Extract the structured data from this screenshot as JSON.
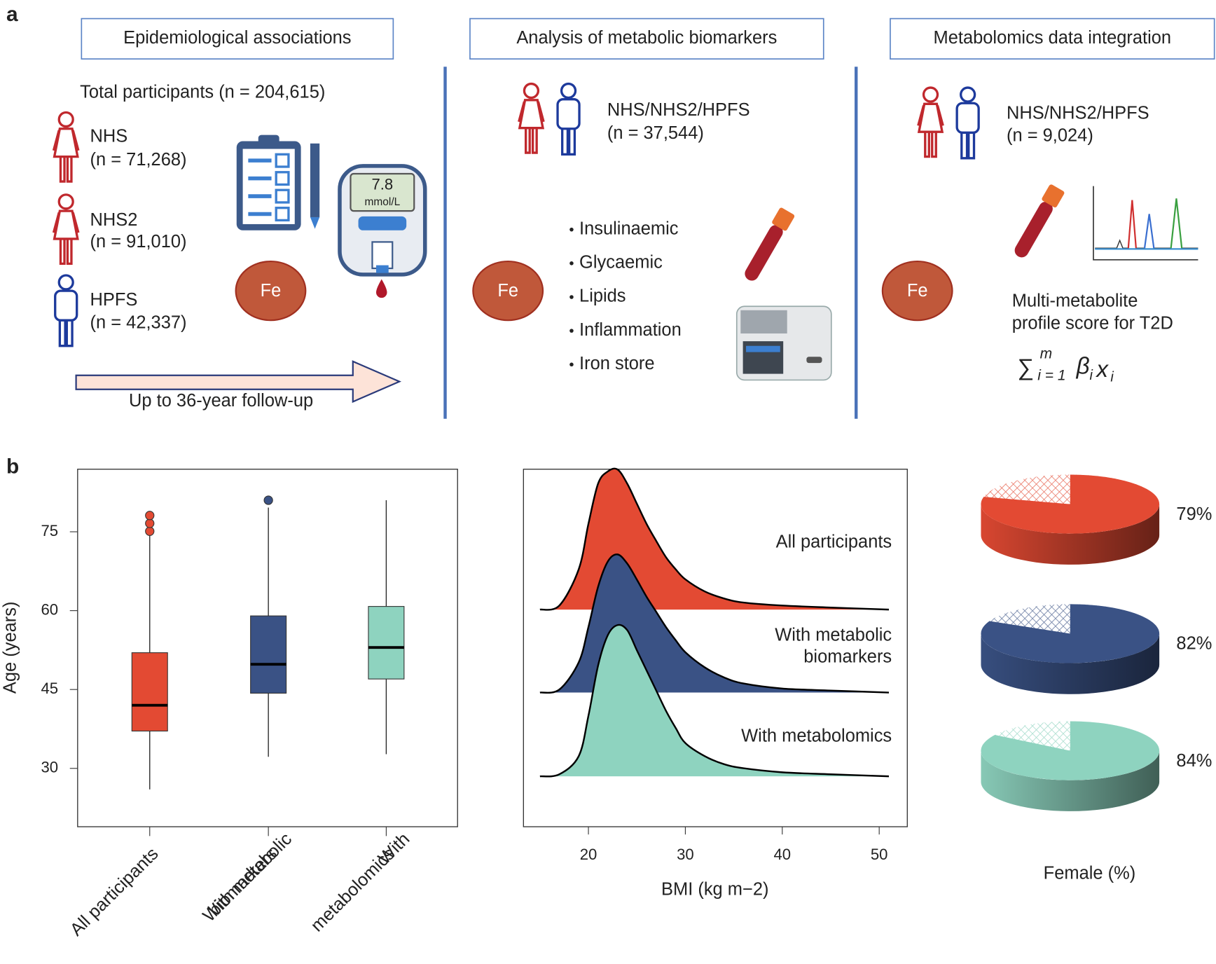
{
  "panel_a": {
    "label": "a",
    "columns": [
      {
        "header": "Epidemiological associations",
        "total": "Total participants (n = 204,615)",
        "cohorts": [
          {
            "name": "NHS",
            "n": "(n = 71,268)"
          },
          {
            "name": "NHS2",
            "n": "(n = 91,010)"
          },
          {
            "name": "HPFS",
            "n": "(n = 42,337)"
          }
        ],
        "meter": {
          "reading": "7.8",
          "unit": "mmol/L"
        },
        "fe": "Fe",
        "arrow": "Up to 36-year follow-up"
      },
      {
        "header": "Analysis of metabolic biomarkers",
        "cohort": "NHS/NHS2/HPFS",
        "n": "(n = 37,544)",
        "fe": "Fe",
        "biomarkers": [
          "Insulinaemic",
          "Glycaemic",
          "Lipids",
          "Inflammation",
          "Iron store"
        ]
      },
      {
        "header": "Metabolomics data integration",
        "cohort": "NHS/NHS2/HPFS",
        "n": "(n = 9,024)",
        "fe": "Fe",
        "score": [
          "Multi-metabolite",
          "profile score for T2D"
        ],
        "formula": {
          "sum": "∑",
          "upper": "m",
          "lower": "i = 1",
          "beta": "β",
          "sub1": "i",
          "x": "x",
          "sub2": "i"
        }
      }
    ]
  },
  "panel_b": {
    "label": "b"
  },
  "chart_data": [
    {
      "type": "box",
      "ylabel": "Age (years)",
      "ylim": [
        18.9,
        86.9
      ],
      "yticks": [
        30,
        45,
        60,
        75
      ],
      "categories": [
        [
          "All participants"
        ],
        [
          "With metabolic",
          "biomarkers"
        ],
        [
          "With",
          "metabolomics"
        ]
      ],
      "colors": [
        "#e34a33",
        "#3a5285",
        "#8ed3bf"
      ],
      "boxes": [
        {
          "whislo": 26.0,
          "q1": 37.1,
          "med": 42.0,
          "q3": 52.0,
          "whishi": 74.4,
          "fliers": [
            75.1,
            76.6,
            78.1
          ]
        },
        {
          "whislo": 32.2,
          "q1": 44.3,
          "med": 49.8,
          "q3": 59.0,
          "whishi": 79.6,
          "fliers": [
            81.0
          ]
        },
        {
          "whislo": 32.7,
          "q1": 47.0,
          "med": 53.0,
          "q3": 60.8,
          "whishi": 81.0,
          "fliers": []
        }
      ]
    },
    {
      "type": "density",
      "xlabel": "BMI (kg m−2)",
      "xlim": [
        13.3,
        52.9
      ],
      "xticks": [
        20,
        30,
        40,
        50
      ],
      "x": [
        15,
        17,
        19,
        20,
        21,
        22,
        23,
        24,
        25,
        26,
        27,
        28,
        29,
        30,
        32,
        34,
        36,
        40,
        45,
        51
      ],
      "series": [
        {
          "name": [
            "All participants"
          ],
          "color": "#e34a33",
          "values": [
            0,
            0.004,
            0.04,
            0.085,
            0.125,
            0.137,
            0.139,
            0.125,
            0.105,
            0.085,
            0.068,
            0.052,
            0.04,
            0.03,
            0.018,
            0.011,
            0.007,
            0.004,
            0.002,
            0
          ]
        },
        {
          "name": [
            "With metabolic",
            "biomarkers"
          ],
          "color": "#3a5285",
          "values": [
            0,
            0.003,
            0.03,
            0.065,
            0.105,
            0.13,
            0.137,
            0.128,
            0.112,
            0.095,
            0.08,
            0.065,
            0.052,
            0.04,
            0.025,
            0.015,
            0.009,
            0.004,
            0.002,
            0
          ]
        },
        {
          "name": [
            "With metabolomics"
          ],
          "color": "#8ed3bf",
          "values": [
            0,
            0.002,
            0.02,
            0.06,
            0.11,
            0.14,
            0.15,
            0.145,
            0.125,
            0.105,
            0.085,
            0.065,
            0.048,
            0.033,
            0.02,
            0.012,
            0.008,
            0.004,
            0.002,
            0
          ]
        }
      ]
    },
    {
      "type": "pie3d",
      "xlabel": "Female (%)",
      "series": [
        {
          "color": "#e34a33",
          "values": [
            79
          ],
          "value_labels": [
            "79%"
          ]
        },
        {
          "color": "#3a5285",
          "values": [
            82
          ],
          "value_labels": [
            "82%"
          ]
        },
        {
          "color": "#8ed3bf",
          "values": [
            84
          ],
          "value_labels": [
            "84%"
          ]
        }
      ]
    }
  ]
}
